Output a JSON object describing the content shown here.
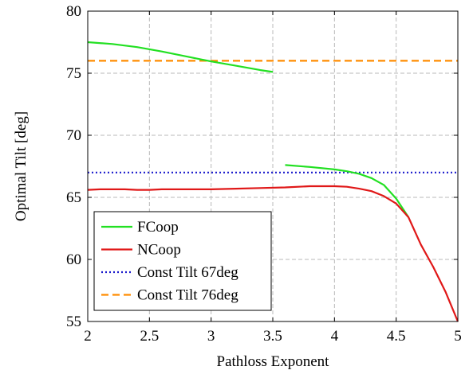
{
  "chart_data": {
    "type": "line",
    "xlabel": "Pathloss Exponent",
    "ylabel": "Optimal Tilt [deg]",
    "xlim": [
      2,
      5
    ],
    "ylim": [
      55,
      80
    ],
    "xticks": [
      "2",
      "2.5",
      "3",
      "3.5",
      "4",
      "4.5",
      "5"
    ],
    "xtick_values": [
      2,
      2.5,
      3,
      3.5,
      4,
      4.5,
      5
    ],
    "yticks": [
      "55",
      "60",
      "65",
      "70",
      "75",
      "80"
    ],
    "ytick_values": [
      55,
      60,
      65,
      70,
      75,
      80
    ],
    "grid": true,
    "legend_position": "bottom-left",
    "series": [
      {
        "name": "FCoop",
        "color": "#22e022",
        "style": "solid",
        "segments": [
          [
            [
              2.0,
              77.5
            ],
            [
              2.2,
              77.35
            ],
            [
              2.4,
              77.1
            ],
            [
              2.6,
              76.75
            ],
            [
              2.8,
              76.35
            ],
            [
              3.0,
              75.95
            ],
            [
              3.2,
              75.6
            ],
            [
              3.4,
              75.25
            ],
            [
              3.5,
              75.1
            ]
          ],
          [
            [
              3.6,
              67.6
            ],
            [
              3.8,
              67.45
            ],
            [
              4.0,
              67.25
            ],
            [
              4.1,
              67.1
            ],
            [
              4.2,
              66.9
            ],
            [
              4.3,
              66.55
            ],
            [
              4.4,
              66.0
            ],
            [
              4.5,
              64.9
            ],
            [
              4.6,
              63.4
            ]
          ]
        ]
      },
      {
        "name": "NCoop",
        "color": "#e01818",
        "style": "solid",
        "segments": [
          [
            [
              2.0,
              65.6
            ],
            [
              2.1,
              65.65
            ],
            [
              2.3,
              65.65
            ],
            [
              2.4,
              65.6
            ],
            [
              2.5,
              65.6
            ],
            [
              2.6,
              65.65
            ],
            [
              2.8,
              65.65
            ],
            [
              3.0,
              65.65
            ],
            [
              3.2,
              65.7
            ],
            [
              3.4,
              65.75
            ],
            [
              3.6,
              65.8
            ],
            [
              3.8,
              65.9
            ],
            [
              3.9,
              65.9
            ],
            [
              4.0,
              65.9
            ],
            [
              4.1,
              65.85
            ],
            [
              4.2,
              65.7
            ],
            [
              4.3,
              65.5
            ],
            [
              4.4,
              65.1
            ],
            [
              4.5,
              64.5
            ],
            [
              4.6,
              63.4
            ],
            [
              4.7,
              61.2
            ],
            [
              4.8,
              59.4
            ],
            [
              4.9,
              57.4
            ],
            [
              5.0,
              55.0
            ]
          ]
        ]
      },
      {
        "name": "Const Tilt 67deg",
        "color": "#1a1acc",
        "style": "dotted",
        "segments": [
          [
            [
              2.0,
              67
            ],
            [
              5.0,
              67
            ]
          ]
        ]
      },
      {
        "name": "Const Tilt 76deg",
        "color": "#ff8c00",
        "style": "dashed",
        "segments": [
          [
            [
              2.0,
              76
            ],
            [
              5.0,
              76
            ]
          ]
        ]
      }
    ]
  }
}
